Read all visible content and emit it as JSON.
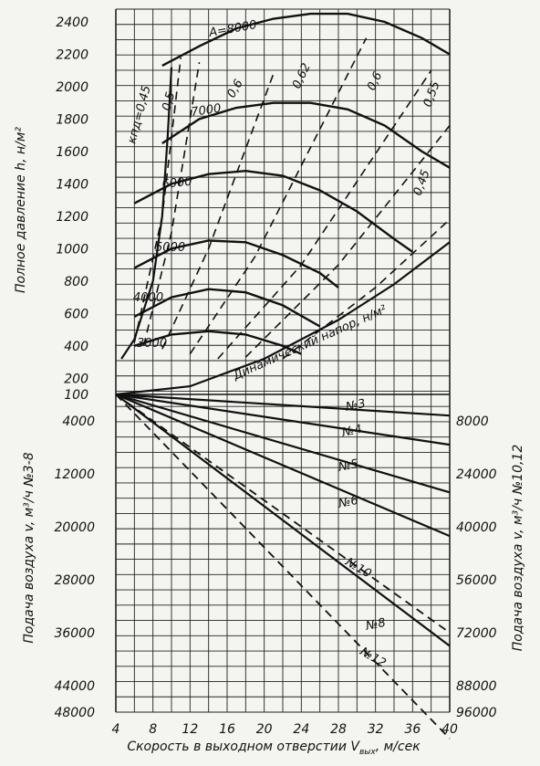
{
  "chart_data": {
    "type": "line",
    "x": {
      "label": "Скорость в выходном отверстии V",
      "label_sub": "вых",
      "label_unit": ", м/сек",
      "ticks": [
        "4",
        "8",
        "12",
        "16",
        "20",
        "24",
        "28",
        "32",
        "36",
        "40"
      ],
      "range": [
        4,
        40
      ]
    },
    "upper": {
      "ylabel": "Полное давление h, н/м²",
      "yticks": [
        "2400",
        "2200",
        "2000",
        "1800",
        "1600",
        "1400",
        "1200",
        "1000",
        "800",
        "600",
        "400",
        "200",
        "100"
      ],
      "yrange": [
        100,
        2400
      ],
      "pressure_curves": [
        {
          "name": "3000",
          "points": [
            [
              6,
              400
            ],
            [
              10,
              470
            ],
            [
              14,
              490
            ],
            [
              18,
              470
            ],
            [
              22,
              400
            ],
            [
              24,
              350
            ]
          ]
        },
        {
          "name": "4000",
          "points": [
            [
              6,
              580
            ],
            [
              10,
              700
            ],
            [
              14,
              750
            ],
            [
              18,
              730
            ],
            [
              22,
              650
            ],
            [
              26,
              520
            ]
          ]
        },
        {
          "name": "5000",
          "points": [
            [
              6,
              880
            ],
            [
              10,
              1000
            ],
            [
              14,
              1050
            ],
            [
              18,
              1040
            ],
            [
              22,
              960
            ],
            [
              26,
              850
            ],
            [
              28,
              760
            ]
          ]
        },
        {
          "name": "6000",
          "points": [
            [
              6,
              1280
            ],
            [
              10,
              1400
            ],
            [
              14,
              1460
            ],
            [
              18,
              1480
            ],
            [
              22,
              1450
            ],
            [
              26,
              1360
            ],
            [
              30,
              1230
            ],
            [
              34,
              1060
            ],
            [
              36,
              980
            ]
          ]
        },
        {
          "name": "7000",
          "points": [
            [
              9,
              1650
            ],
            [
              13,
              1800
            ],
            [
              17,
              1870
            ],
            [
              21,
              1900
            ],
            [
              25,
              1900
            ],
            [
              29,
              1860
            ],
            [
              33,
              1760
            ],
            [
              37,
              1600
            ],
            [
              40,
              1500
            ]
          ]
        },
        {
          "name": "A=8000",
          "points": [
            [
              9,
              2130
            ],
            [
              13,
              2250
            ],
            [
              17,
              2360
            ],
            [
              21,
              2420
            ],
            [
              25,
              2450
            ],
            [
              29,
              2450
            ],
            [
              33,
              2400
            ],
            [
              37,
              2300
            ],
            [
              40,
              2200
            ]
          ]
        }
      ],
      "efficiency_lines": [
        {
          "name": "кпд=0,45",
          "points": [
            [
              6,
              420
            ],
            [
              9,
              1200
            ],
            [
              11,
              2180
            ]
          ]
        },
        {
          "name": "0,5",
          "points": [
            [
              7,
              400
            ],
            [
              10,
              1100
            ],
            [
              13,
              2150
            ]
          ]
        },
        {
          "name": "0,6",
          "points": [
            [
              9,
              380
            ],
            [
              14,
              1000
            ],
            [
              21,
              2080
            ]
          ]
        },
        {
          "name": "0,62",
          "points": [
            [
              12,
              350
            ],
            [
              19,
              950
            ],
            [
              31,
              2300
            ]
          ]
        },
        {
          "name": "0,6",
          "points": [
            [
              15,
              320
            ],
            [
              24,
              900
            ],
            [
              38,
              2100
            ]
          ]
        },
        {
          "name": "0,55",
          "points": [
            [
              18,
              330
            ],
            [
              28,
              900
            ],
            [
              40,
              1760
            ]
          ]
        },
        {
          "name": "0,45",
          "points": [
            [
              22,
              320
            ],
            [
              32,
              760
            ],
            [
              40,
              1180
            ]
          ]
        }
      ],
      "dynamic_head": {
        "name": "Динамический напор, н/м²",
        "points": [
          [
            4,
            100
          ],
          [
            12,
            150
          ],
          [
            20,
            320
          ],
          [
            28,
            560
          ],
          [
            34,
            780
          ],
          [
            40,
            1040
          ]
        ]
      },
      "curve_labels": [
        "A=8000",
        "7000",
        "6000",
        "5000",
        "4000",
        "3000",
        "кпд=0,45",
        "0,5",
        "0,6",
        "0,62",
        "0,6",
        "0,55",
        "0,45"
      ]
    },
    "lower_left": {
      "ylabel": "Подача воздуха v, м³/ч №3-8",
      "yticks": [
        "4000",
        "12000",
        "20000",
        "28000",
        "36000",
        "44000",
        "48000"
      ],
      "yrange": [
        0,
        48000
      ],
      "series": [
        {
          "name": "№3",
          "points": [
            [
              4,
              0
            ],
            [
              40,
              3200
            ]
          ]
        },
        {
          "name": "№4",
          "points": [
            [
              4,
              0
            ],
            [
              40,
              7600
            ]
          ]
        },
        {
          "name": "№5",
          "points": [
            [
              4,
              0
            ],
            [
              40,
              14800
            ]
          ]
        },
        {
          "name": "№6",
          "points": [
            [
              4,
              0
            ],
            [
              40,
              21400
            ]
          ]
        },
        {
          "name": "№8",
          "points": [
            [
              4,
              0
            ],
            [
              40,
              38000
            ]
          ]
        }
      ]
    },
    "lower_right": {
      "ylabel": "Подача воздуха v, м³/ч №10,12",
      "yticks": [
        "8000",
        "24000",
        "40000",
        "56000",
        "72000",
        "88000",
        "96000"
      ],
      "yrange": [
        0,
        96000
      ],
      "series": [
        {
          "name": "№10",
          "points": [
            [
              4,
              0
            ],
            [
              40,
              72000
            ]
          ]
        },
        {
          "name": "№12",
          "points": [
            [
              4,
              0
            ],
            [
              40,
              104000
            ]
          ]
        }
      ]
    },
    "grid": true
  }
}
